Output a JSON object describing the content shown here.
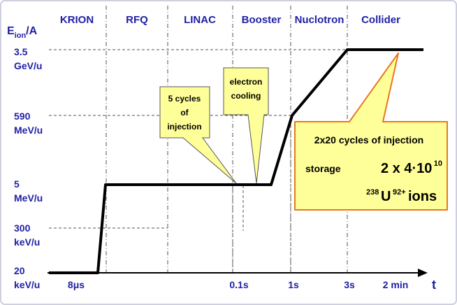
{
  "y_axis": {
    "label_main": "E",
    "label_sub": "ion",
    "label_unit": "/A",
    "ticks": [
      {
        "line1": "3.5",
        "line2": "GeV/u"
      },
      {
        "line1": "590",
        "line2": "MeV/u"
      },
      {
        "line1": "5",
        "line2": "MeV/u"
      },
      {
        "line1": "300",
        "line2": "keV/u"
      },
      {
        "line1": "20",
        "line2": "keV/u"
      }
    ]
  },
  "x_axis": {
    "label": "t",
    "ticks": [
      "8μs",
      "0.1s",
      "1s",
      "3s",
      "2 min"
    ]
  },
  "stages": [
    "KRION",
    "RFQ",
    "LINAC",
    "Booster",
    "Nuclotron",
    "Collider"
  ],
  "callouts": {
    "injection": [
      "5 cycles",
      "of",
      "injection"
    ],
    "cooling": [
      "electron",
      "cooling"
    ],
    "collider": {
      "line1": "2x20 cycles of injection",
      "storage_label": "storage",
      "formula_prefix": "2 x 4·10",
      "formula_exp": "10",
      "isotope_mass": "238",
      "element": "U",
      "charge": "92+",
      "ions": " ions"
    }
  },
  "colors": {
    "text": "#1f1fa6",
    "callout_fill": "#ffff99",
    "collider_fill": "#ffff99",
    "collider_border": "#e87722",
    "curve": "#000000",
    "frame": "#cfcfe0"
  }
}
